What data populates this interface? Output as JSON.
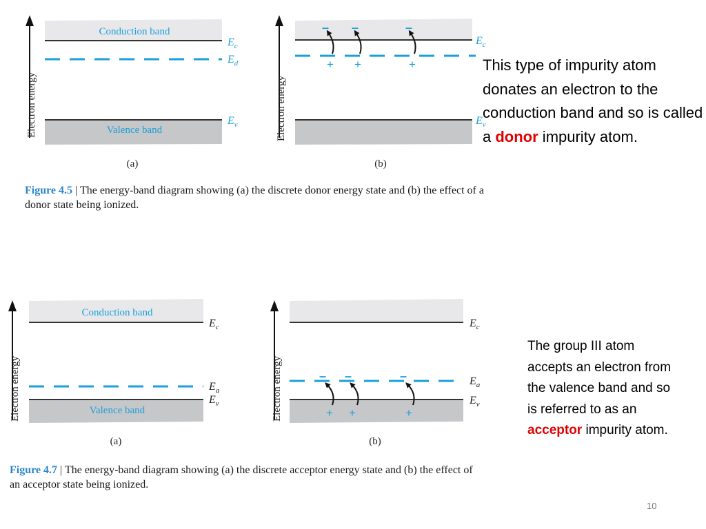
{
  "colors": {
    "level": "#1a9fdb",
    "label": "#1a9fdb",
    "conduction_fill": "#e8e8ea",
    "valence_fill": "#c6c7c9",
    "caption_label": "#2a86c8",
    "emphasis": "#e00000"
  },
  "figure_4_5": {
    "axis_label": "Electron energy",
    "conduction_band": "Conduction band",
    "valence_band": "Valence band",
    "ec": "E",
    "ec_sub": "c",
    "ed": "E",
    "ed_sub": "d",
    "ev": "E",
    "ev_sub": "v",
    "part_a": "(a)",
    "part_b": "(b)",
    "electron": "–",
    "ion": "+",
    "caption_label": "Figure 4.5",
    "caption_sep": "|",
    "caption_text": "The energy-band diagram showing (a) the discrete donor energy state and (b) the effect of a donor state being ionized."
  },
  "figure_4_7": {
    "axis_label": "Electron energy",
    "conduction_band": "Conduction band",
    "valence_band": "Valence band",
    "ec": "E",
    "ec_sub": "c",
    "ea": "E",
    "ea_sub": "a",
    "ev": "E",
    "ev_sub": "v",
    "part_a": "(a)",
    "part_b": "(b)",
    "electron": "–",
    "ion": "+",
    "caption_label": "Figure 4.7",
    "caption_sep": "|",
    "caption_text": "The energy-band diagram showing (a) the discrete acceptor energy state and (b) the effect of an acceptor state being ionized."
  },
  "note_donor": {
    "before": "This type of impurity atom donates an electron to the conduction band and so is called a ",
    "emphasis": "donor",
    "after": " impurity atom."
  },
  "note_acceptor": {
    "before": "The group III atom accepts an electron from the valence band and so is referred to as an ",
    "emphasis": "acceptor",
    "after": " impurity atom."
  },
  "page_number": "10"
}
